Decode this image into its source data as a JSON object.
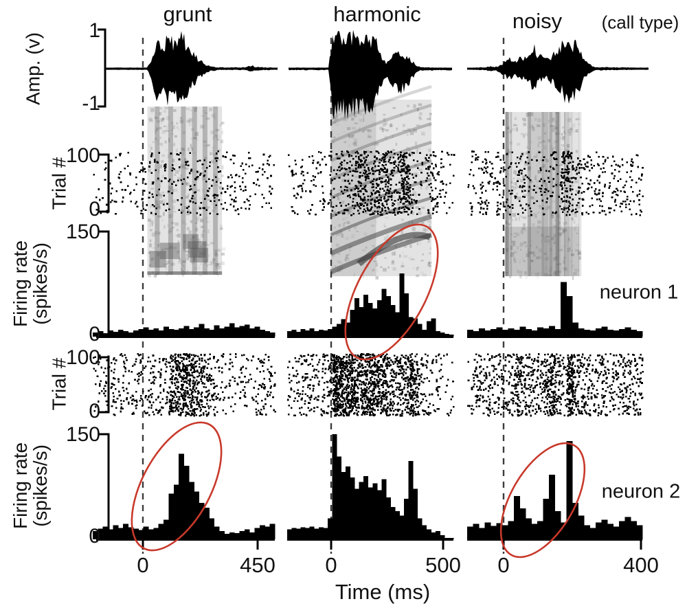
{
  "header": {
    "columns": [
      {
        "label": "grunt"
      },
      {
        "label": "harmonic"
      },
      {
        "label": "noisy"
      }
    ],
    "suffix": "(call type)"
  },
  "y_axes": {
    "amplitude": {
      "label": "Amp. (v)",
      "ticks": [
        "1",
        "-1"
      ]
    },
    "trial1": {
      "label": "Trial #",
      "ticks": [
        "100",
        "0"
      ]
    },
    "rate1": {
      "label_line1": "Firing rate",
      "label_line2": "(spikes/s)",
      "ticks": [
        "150",
        "0"
      ]
    },
    "trial2": {
      "label": "Trial #",
      "ticks": [
        "100",
        "0"
      ]
    },
    "rate2": {
      "label_line1": "Firing rate",
      "label_line2": "(spikes/s)",
      "ticks": [
        "150",
        "0"
      ]
    }
  },
  "x_axis": {
    "label": "Time (ms)",
    "columns": [
      {
        "ticks": [
          "0",
          "450"
        ]
      },
      {
        "ticks": [
          "0",
          "500"
        ]
      },
      {
        "ticks": [
          "0",
          "400"
        ]
      }
    ]
  },
  "annotations": {
    "neuron1": "neuron 1",
    "neuron2": "neuron 2",
    "ellipse_color": "#c8392b",
    "dash_color": "#3c3c3c"
  },
  "chart_data": {
    "type": "bar",
    "description": "Multi-panel neurophysiology figure: sound amplitude waveforms and spectrograms for three call types (grunt, harmonic, noisy), with spike raster plots (100 trials) and peri-stimulus time histograms (firing rate, spikes/s, 0-150) for two neurons. Dashed line marks stimulus onset (t = 0 ms). Red ellipses highlight selective responses.",
    "y_scales": {
      "rate_max_spikes_per_s": 150,
      "trials": 100,
      "amplitude_v": [
        -1,
        1
      ]
    },
    "columns": [
      {
        "call_type": "grunt",
        "x_tick_values_ms": [
          0,
          450
        ],
        "hist_t_start_ms": -200,
        "hist_bin_ms": 20,
        "neuron1_hist_spikes_per_s": [
          6,
          8,
          5,
          9,
          7,
          10,
          8,
          6,
          9,
          11,
          13,
          10,
          12,
          9,
          14,
          11,
          10,
          12,
          15,
          11,
          13,
          18,
          12,
          10,
          16,
          12,
          14,
          19,
          13,
          15,
          17,
          12,
          14,
          10,
          8,
          6
        ],
        "neuron2_hist_spikes_per_s": [
          12,
          15,
          18,
          14,
          20,
          16,
          22,
          17,
          15,
          13,
          18,
          14,
          16,
          22,
          28,
          65,
          78,
          122,
          105,
          82,
          68,
          52,
          45,
          30,
          18,
          12,
          8,
          10,
          9,
          12,
          14,
          10,
          16,
          20,
          18,
          22
        ],
        "waveform_envelope": [
          [
            0,
            0.03
          ],
          [
            0.3,
            0.03
          ],
          [
            0.32,
            0.25
          ],
          [
            0.34,
            0.65
          ],
          [
            0.36,
            0.95
          ],
          [
            0.39,
            0.55
          ],
          [
            0.41,
            1.0
          ],
          [
            0.44,
            0.8
          ],
          [
            0.47,
            1.0
          ],
          [
            0.5,
            0.9
          ],
          [
            0.54,
            0.6
          ],
          [
            0.58,
            0.3
          ],
          [
            0.62,
            0.12
          ],
          [
            0.66,
            0.06
          ],
          [
            0.7,
            0.04
          ],
          [
            0.84,
            0.04
          ],
          [
            0.87,
            0.1
          ],
          [
            0.9,
            0.05
          ],
          [
            1,
            0.03
          ]
        ],
        "spectrogram_style": "vertical-striations",
        "spectrogram_t_frac": [
          0.3,
          0.71
        ]
      },
      {
        "call_type": "harmonic",
        "x_tick_values_ms": [
          0,
          500
        ],
        "hist_t_start_ms": -190,
        "hist_bin_ms": 20,
        "neuron1_hist_spikes_per_s": [
          8,
          10,
          7,
          11,
          9,
          12,
          8,
          10,
          9,
          11,
          14,
          18,
          25,
          20,
          38,
          55,
          42,
          60,
          48,
          40,
          52,
          68,
          58,
          45,
          35,
          90,
          62,
          28,
          26,
          18,
          10,
          22,
          26,
          8,
          6,
          4,
          3
        ],
        "neuron2_hist_spikes_per_s": [
          14,
          16,
          15,
          17,
          16,
          18,
          15,
          17,
          16,
          30,
          150,
          118,
          96,
          104,
          88,
          72,
          82,
          90,
          74,
          80,
          70,
          86,
          60,
          46,
          40,
          34,
          58,
          112,
          72,
          30,
          20,
          14,
          10,
          12,
          6,
          2,
          2
        ],
        "waveform_envelope": [
          [
            0,
            0.03
          ],
          [
            0.25,
            0.03
          ],
          [
            0.26,
            0.5
          ],
          [
            0.28,
            1.0
          ],
          [
            0.33,
            0.95
          ],
          [
            0.38,
            1.0
          ],
          [
            0.43,
            0.92
          ],
          [
            0.48,
            0.9
          ],
          [
            0.53,
            0.85
          ],
          [
            0.56,
            0.45
          ],
          [
            0.58,
            0.25
          ],
          [
            0.6,
            0.18
          ],
          [
            0.63,
            0.35
          ],
          [
            0.66,
            0.5
          ],
          [
            0.7,
            0.45
          ],
          [
            0.74,
            0.3
          ],
          [
            0.77,
            0.12
          ],
          [
            0.8,
            0.04
          ],
          [
            1,
            0.03
          ]
        ],
        "spectrogram_style": "harmonic-arcs",
        "spectrogram_t_frac": [
          0.262,
          0.868
        ]
      },
      {
        "call_type": "noisy",
        "x_tick_values_ms": [
          0,
          400
        ],
        "hist_t_start_ms": -130,
        "hist_bin_ms": 20,
        "neuron1_hist_spikes_per_s": [
          10,
          8,
          12,
          9,
          11,
          13,
          10,
          12,
          10,
          14,
          11,
          9,
          13,
          12,
          15,
          11,
          78,
          58,
          20,
          12,
          10,
          9,
          12,
          14,
          10,
          9,
          11,
          13,
          10,
          8
        ],
        "neuron2_hist_spikes_per_s": [
          18,
          22,
          16,
          24,
          19,
          23,
          20,
          26,
          62,
          44,
          30,
          22,
          26,
          58,
          92,
          40,
          24,
          140,
          52,
          34,
          20,
          16,
          24,
          28,
          22,
          18,
          26,
          32,
          26,
          20
        ],
        "waveform_envelope": [
          [
            0,
            0.03
          ],
          [
            0.1,
            0.04
          ],
          [
            0.13,
            0.08
          ],
          [
            0.16,
            0.05
          ],
          [
            0.19,
            0.1
          ],
          [
            0.21,
            0.22
          ],
          [
            0.24,
            0.3
          ],
          [
            0.27,
            0.22
          ],
          [
            0.31,
            0.35
          ],
          [
            0.34,
            0.28
          ],
          [
            0.38,
            0.68
          ],
          [
            0.41,
            0.38
          ],
          [
            0.45,
            0.3
          ],
          [
            0.49,
            0.42
          ],
          [
            0.53,
            0.6
          ],
          [
            0.57,
            1.0
          ],
          [
            0.6,
            0.7
          ],
          [
            0.63,
            0.9
          ],
          [
            0.66,
            0.35
          ],
          [
            0.69,
            0.14
          ],
          [
            0.73,
            0.05
          ],
          [
            1,
            0.03
          ]
        ],
        "spectrogram_style": "noisy-streaks",
        "spectrogram_t_frac": [
          0.215,
          0.64
        ]
      }
    ]
  }
}
